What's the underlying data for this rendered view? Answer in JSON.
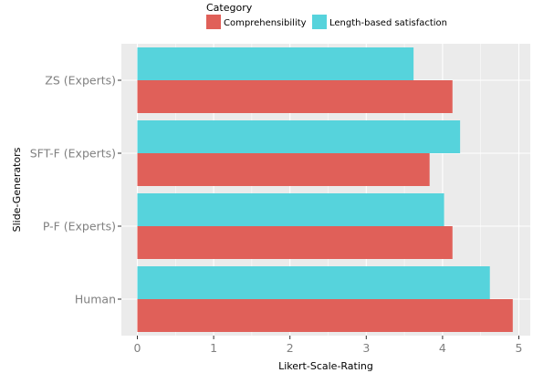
{
  "chart_data": {
    "type": "bar",
    "orientation": "horizontal",
    "categories": [
      "ZS (Experts)",
      "SFT-F (Experts)",
      "P-F (Experts)",
      "Human"
    ],
    "series": [
      {
        "name": "Comprehensibility",
        "color": "#e06059",
        "values": [
          4.13,
          3.83,
          4.13,
          4.92
        ]
      },
      {
        "name": "Length-based satisfaction",
        "color": "#56d3dc",
        "values": [
          3.62,
          4.23,
          4.02,
          4.62
        ]
      }
    ],
    "xlabel": "Likert-Scale-Rating",
    "ylabel": "Slide-Generators",
    "xlim": [
      0,
      5
    ],
    "xticks": [
      "0",
      "1",
      "2",
      "3",
      "4",
      "5"
    ],
    "legend": {
      "title": "Category",
      "position": "top"
    },
    "grid": true,
    "background": "#ebebeb"
  }
}
